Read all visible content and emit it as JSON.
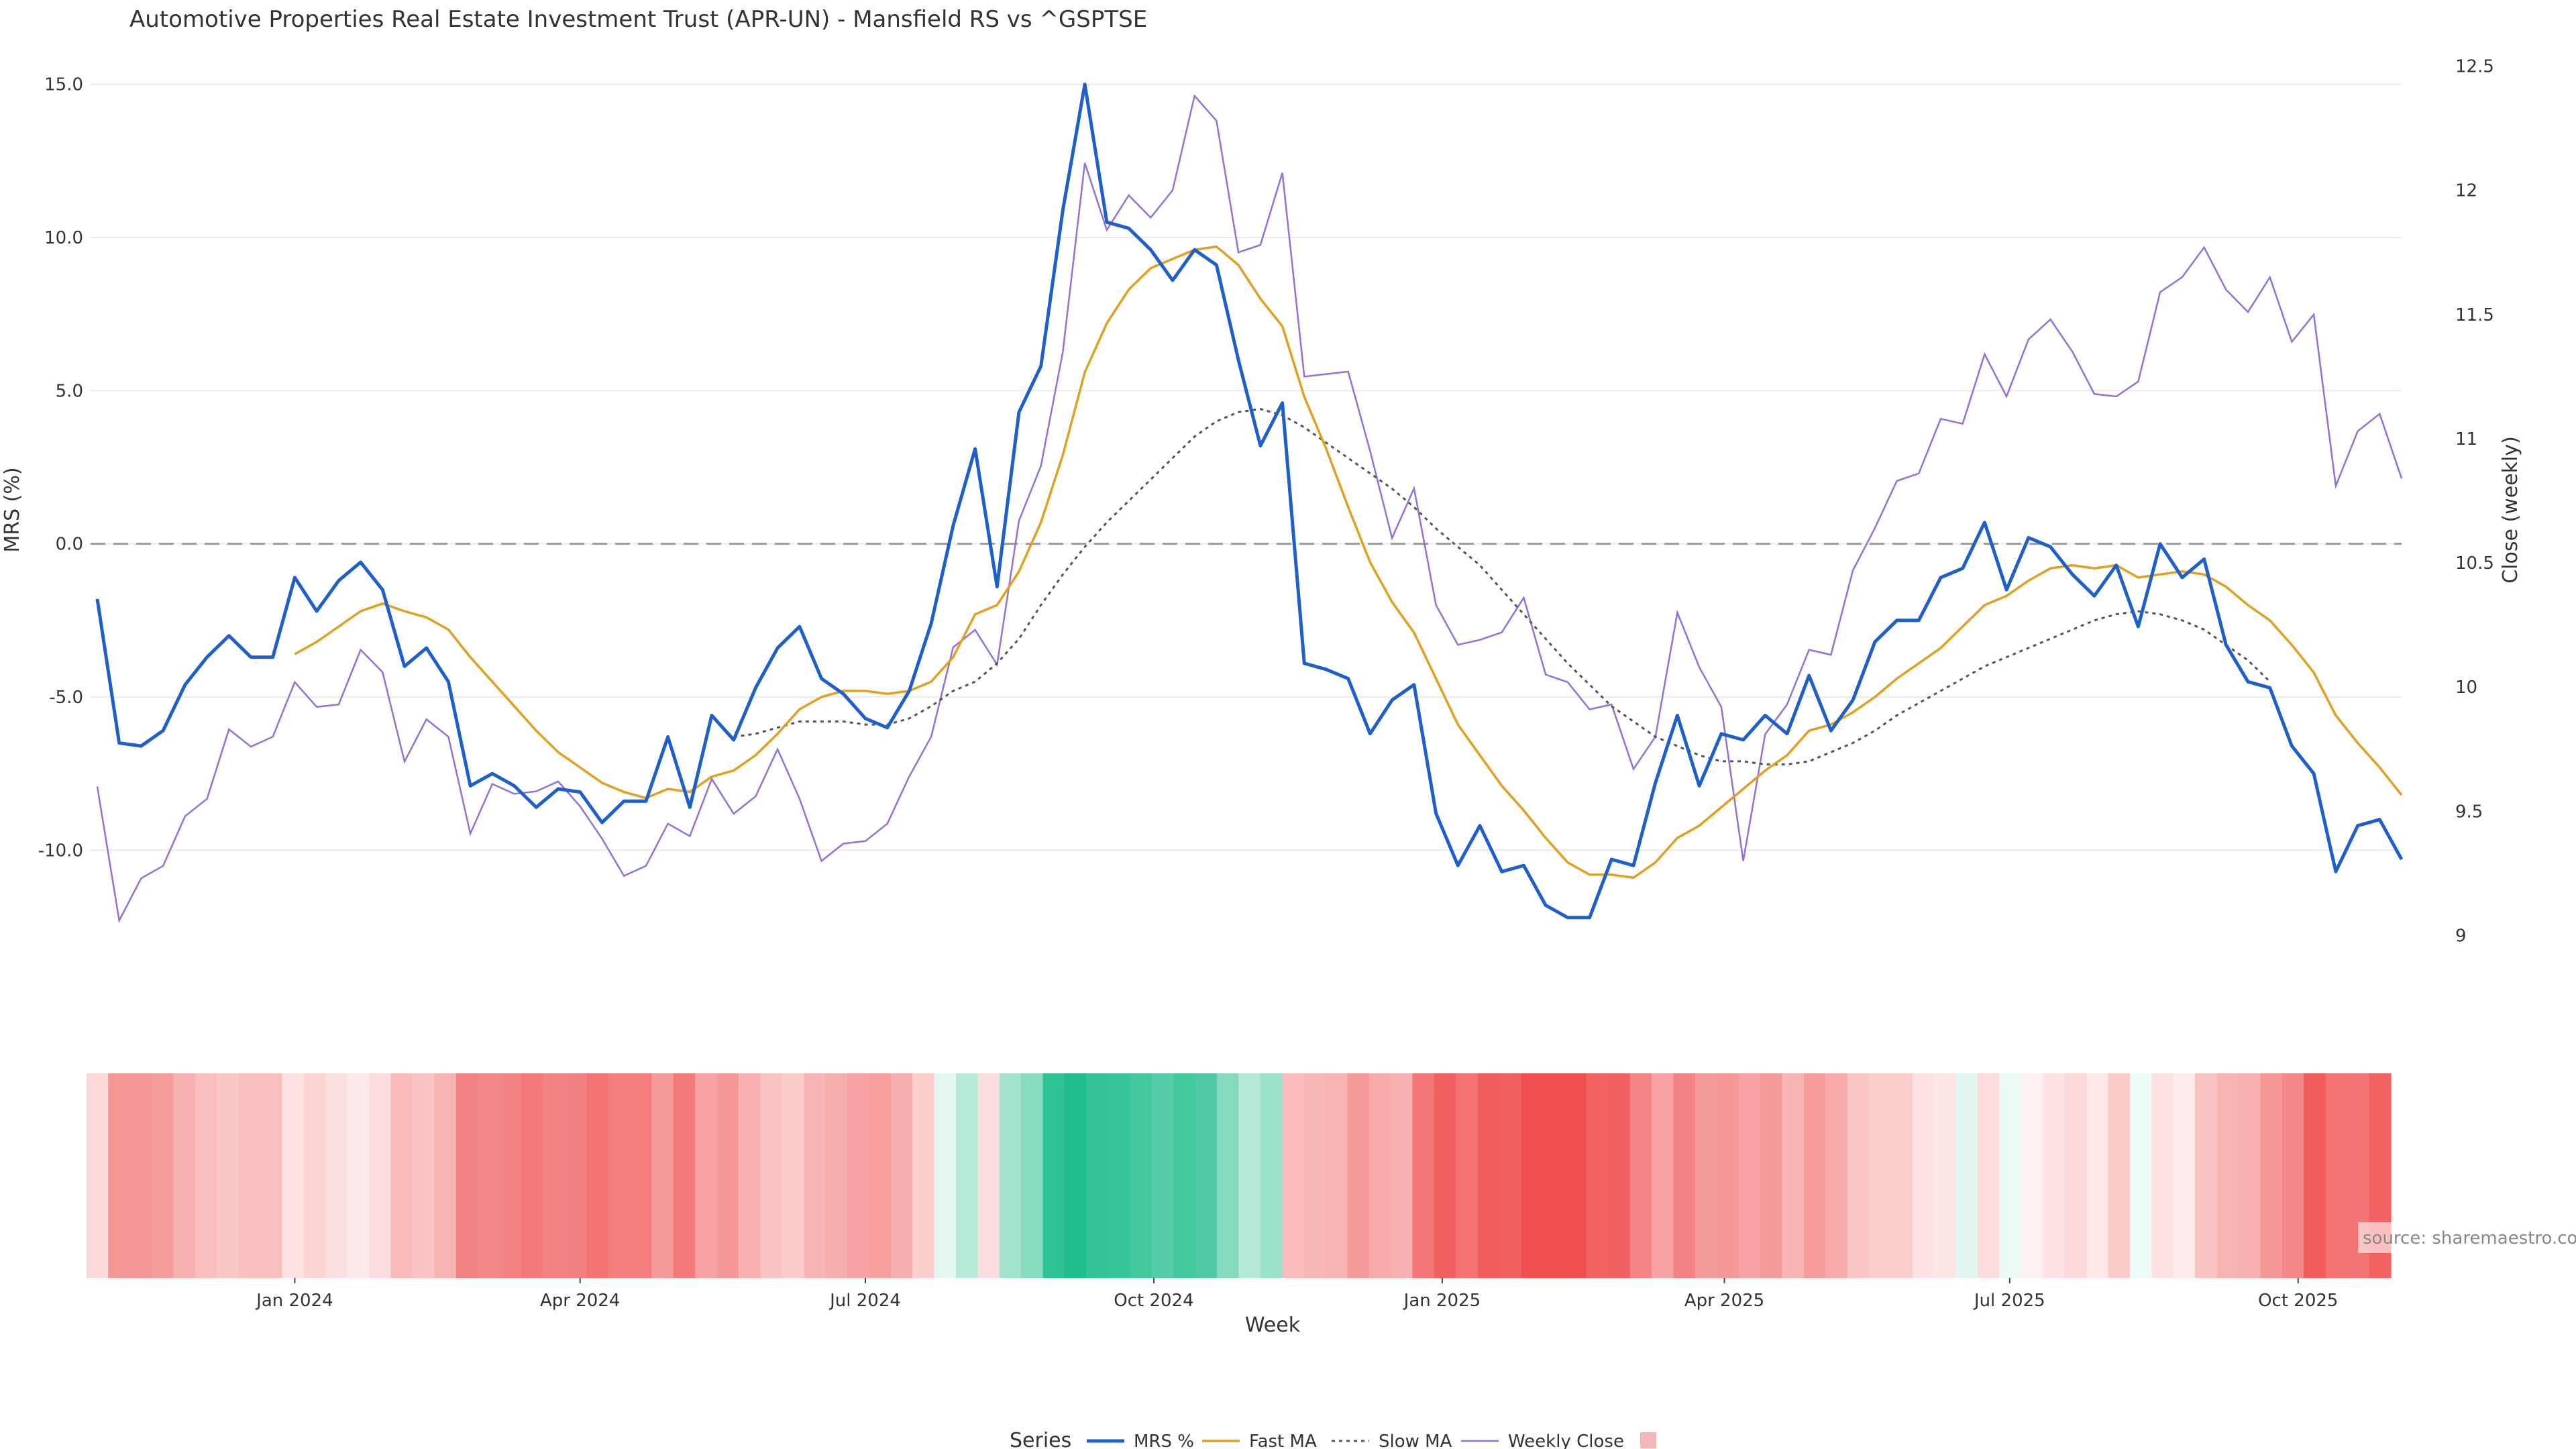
{
  "chart_data": {
    "type": "line",
    "title": "Automotive Properties Real Estate Investment Trust (APR-UN) - Mansfield RS vs ^GSPTSE",
    "xlabel": "Week",
    "ylabel_left": "MRS (%)",
    "ylabel_right": "Close (weekly)",
    "x_start": "2023-10-30",
    "x_interval_days": 7,
    "x_ticks": [
      "Jan 2024",
      "Apr 2024",
      "Jul 2024",
      "Oct 2024",
      "Jan 2025",
      "Apr 2025",
      "Jul 2025",
      "Oct 2025"
    ],
    "y_left_ticks": [
      "15.0",
      "10.0",
      "5.0",
      "0.0",
      "-5.0",
      "-10.0"
    ],
    "y_left_lim": [
      -14,
      16
    ],
    "y_right_ticks": [
      "12.5",
      "12",
      "11.5",
      "11",
      "10.5",
      "10",
      "9.5",
      "9"
    ],
    "y_right_lim": [
      8.85,
      12.55
    ],
    "zero_line": 0,
    "grid": true,
    "legend": {
      "title": "Series",
      "placement": "bottom-center",
      "entries": [
        "MRS %",
        "Fast MA",
        "Slow MA",
        "Weekly Close",
        ""
      ]
    },
    "source_text": "source: sharemaestro.com",
    "colors": {
      "mrs": "#1f5fcc",
      "fast_ma": "#e0a020",
      "slow_ma": "#555555",
      "close": "#9370db",
      "heat_negative": "#f05050",
      "heat_positive": "#20bd8c",
      "legend_swatch": "#f5b8b8"
    },
    "series": [
      {
        "name": "MRS %",
        "values": [
          -1.8,
          -6.5,
          -6.6,
          -6.1,
          -4.6,
          -3.7,
          -3.0,
          -3.7,
          -3.7,
          -1.1,
          -2.2,
          -1.2,
          -0.6,
          -1.5,
          -4.0,
          -3.4,
          -4.5,
          -7.9,
          -7.5,
          -7.9,
          -8.6,
          -8.0,
          -8.1,
          -9.1,
          -8.4,
          -8.4,
          -6.3,
          -8.6,
          -5.6,
          -6.4,
          -4.7,
          -3.4,
          -2.7,
          -4.4,
          -4.9,
          -5.7,
          -6.0,
          -4.8,
          -2.6,
          0.6,
          3.1,
          -1.4,
          4.3,
          5.8,
          10.9,
          15.0,
          10.5,
          10.3,
          9.6,
          8.6,
          9.6,
          9.1,
          6.0,
          3.2,
          4.6,
          -3.9,
          -4.1,
          -4.4,
          -6.2,
          -5.1,
          -4.6,
          -8.8,
          -10.5,
          -9.2,
          -10.7,
          -10.5,
          -11.8,
          -12.2,
          -12.2,
          -10.3,
          -10.5,
          -7.8,
          -5.6,
          -7.9,
          -6.2,
          -6.4,
          -5.6,
          -6.2,
          -4.3,
          -6.1,
          -5.1,
          -3.2,
          -2.5,
          -2.5,
          -1.1,
          -0.8,
          0.7,
          -1.5,
          0.2,
          -0.1,
          -1.0,
          -1.7,
          -0.7,
          -2.7,
          0.0,
          -1.1,
          -0.5,
          -3.3,
          -4.5,
          -4.7,
          -6.6,
          -7.5,
          -10.7,
          -9.2,
          -9.0,
          -10.3
        ]
      },
      {
        "name": "Fast MA",
        "start_index": 9,
        "values": [
          -3.6,
          -3.2,
          -2.7,
          -2.2,
          -1.95,
          -2.2,
          -2.4,
          -2.8,
          -3.7,
          -4.5,
          -5.3,
          -6.1,
          -6.8,
          -7.3,
          -7.8,
          -8.1,
          -8.3,
          -8.0,
          -8.1,
          -7.6,
          -7.4,
          -6.9,
          -6.2,
          -5.4,
          -5.0,
          -4.8,
          -4.8,
          -4.9,
          -4.8,
          -4.5,
          -3.7,
          -2.3,
          -2.0,
          -0.9,
          0.7,
          2.9,
          5.6,
          7.2,
          8.3,
          9.0,
          9.3,
          9.6,
          9.7,
          9.1,
          8.0,
          7.1,
          4.8,
          3.1,
          1.2,
          -0.6,
          -1.9,
          -2.9,
          -4.4,
          -5.9,
          -6.9,
          -7.9,
          -8.7,
          -9.6,
          -10.4,
          -10.8,
          -10.8,
          -10.9,
          -10.4,
          -9.6,
          -9.2,
          -8.6,
          -8.0,
          -7.4,
          -6.9,
          -6.1,
          -5.9,
          -5.5,
          -5.0,
          -4.4,
          -3.9,
          -3.4,
          -2.7,
          -2.0,
          -1.7,
          -1.2,
          -0.8,
          -0.7,
          -0.8,
          -0.7,
          -1.1,
          -1.0,
          -0.9,
          -1.0,
          -1.4,
          -2.0,
          -2.5,
          -3.3,
          -4.2,
          -5.6,
          -6.5,
          -7.3,
          -8.2
        ]
      },
      {
        "name": "Slow MA",
        "start_index": 29,
        "values": [
          -6.3,
          -6.2,
          -6.0,
          -5.8,
          -5.8,
          -5.8,
          -5.9,
          -5.9,
          -5.7,
          -5.3,
          -4.8,
          -4.5,
          -3.9,
          -3.1,
          -2.0,
          -1.0,
          -0.1,
          0.7,
          1.4,
          2.1,
          2.8,
          3.5,
          4.0,
          4.3,
          4.4,
          4.2,
          3.8,
          3.3,
          2.8,
          2.3,
          1.8,
          1.2,
          0.5,
          -0.1,
          -0.7,
          -1.5,
          -2.3,
          -3.1,
          -3.9,
          -4.6,
          -5.3,
          -5.8,
          -6.3,
          -6.6,
          -6.9,
          -7.1,
          -7.1,
          -7.2,
          -7.2,
          -7.1,
          -6.8,
          -6.5,
          -6.1,
          -5.6,
          -5.2,
          -4.8,
          -4.4,
          -4.0,
          -3.7,
          -3.4,
          -3.1,
          -2.8,
          -2.5,
          -2.3,
          -2.2,
          -2.3,
          -2.5,
          -2.8,
          -3.3,
          -3.8,
          -4.5
        ]
      },
      {
        "name": "Weekly Close",
        "values": [
          9.6,
          9.06,
          9.23,
          9.28,
          9.48,
          9.55,
          9.83,
          9.76,
          9.8,
          10.02,
          9.92,
          9.93,
          10.15,
          10.06,
          9.7,
          9.87,
          9.8,
          9.41,
          9.61,
          9.57,
          9.58,
          9.62,
          9.52,
          9.39,
          9.24,
          9.28,
          9.45,
          9.4,
          9.63,
          9.49,
          9.56,
          9.75,
          9.55,
          9.3,
          9.37,
          9.38,
          9.45,
          9.64,
          9.8,
          10.16,
          10.23,
          10.09,
          10.67,
          10.89,
          11.35,
          12.11,
          11.84,
          11.98,
          11.89,
          12.0,
          12.38,
          12.28,
          11.75,
          11.78,
          12.07,
          11.25,
          11.26,
          11.27,
          10.95,
          10.6,
          10.8,
          10.33,
          10.17,
          10.19,
          10.22,
          10.36,
          10.05,
          10.02,
          9.91,
          9.93,
          9.67,
          9.8,
          10.3,
          10.08,
          9.92,
          9.3,
          9.81,
          9.93,
          10.15,
          10.13,
          10.47,
          10.64,
          10.83,
          10.86,
          11.08,
          11.06,
          11.34,
          11.17,
          11.4,
          11.48,
          11.35,
          11.18,
          11.17,
          11.23,
          11.59,
          11.65,
          11.77,
          11.6,
          11.51,
          11.65,
          11.39,
          11.5,
          10.81,
          11.03,
          11.1,
          10.84
        ]
      }
    ]
  }
}
